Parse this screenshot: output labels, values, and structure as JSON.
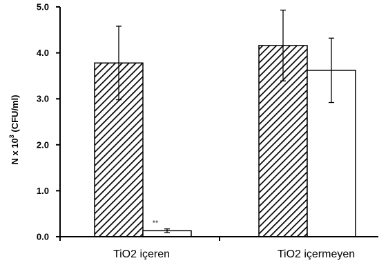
{
  "chart_data": {
    "type": "bar",
    "categories": [
      "TiO2 içeren",
      "TiO2 içermeyen"
    ],
    "series": [
      {
        "fill": "hatched",
        "values": [
          3.78,
          4.16
        ],
        "errors": [
          0.8,
          0.77
        ]
      },
      {
        "fill": "white",
        "values": [
          0.13,
          3.62
        ],
        "errors": [
          0.04,
          0.7
        ]
      }
    ],
    "ylabel": {
      "prefix": "N x 10",
      "exponent": "3",
      "unit": " (CFU/ml)"
    },
    "ylim": [
      0,
      5
    ],
    "yticks": [
      "0.0",
      "1.0",
      "2.0",
      "3.0",
      "4.0",
      "5.0"
    ],
    "annotations": [
      {
        "text": "**",
        "category": 0,
        "series": 1
      }
    ],
    "grid": false,
    "legend": "none",
    "colors": {
      "hatch_line": "#000000",
      "bar_stroke": "#000000",
      "bar_white_fill": "#ffffff"
    }
  }
}
